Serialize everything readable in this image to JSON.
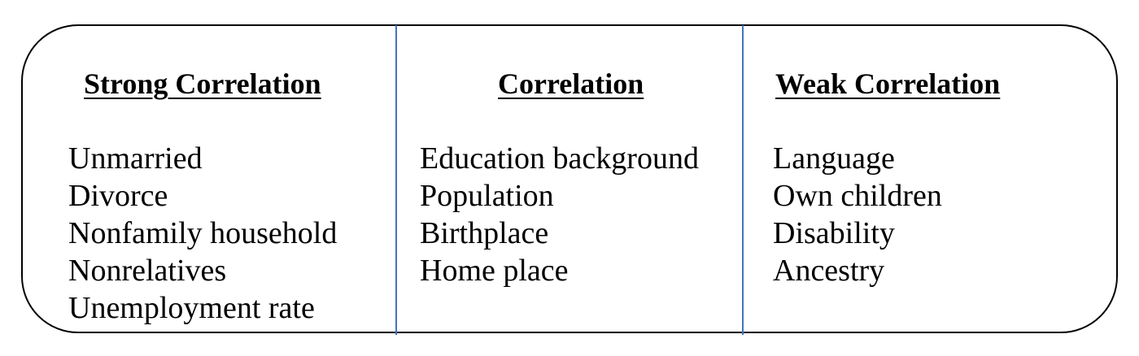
{
  "columns": [
    {
      "heading": "Strong Correlation",
      "items": [
        "Unmarried",
        "Divorce",
        "Nonfamily household",
        "Nonrelatives",
        "Unemployment rate"
      ]
    },
    {
      "heading": "Correlation",
      "items": [
        "Education background",
        "Population",
        "Birthplace",
        "Home place"
      ]
    },
    {
      "heading": "Weak Correlation",
      "items": [
        "Language",
        "Own children",
        "Disability",
        "Ancestry"
      ]
    }
  ],
  "colors": {
    "frame_border": "#000000",
    "divider": "#4472c4",
    "text": "#000000"
  }
}
